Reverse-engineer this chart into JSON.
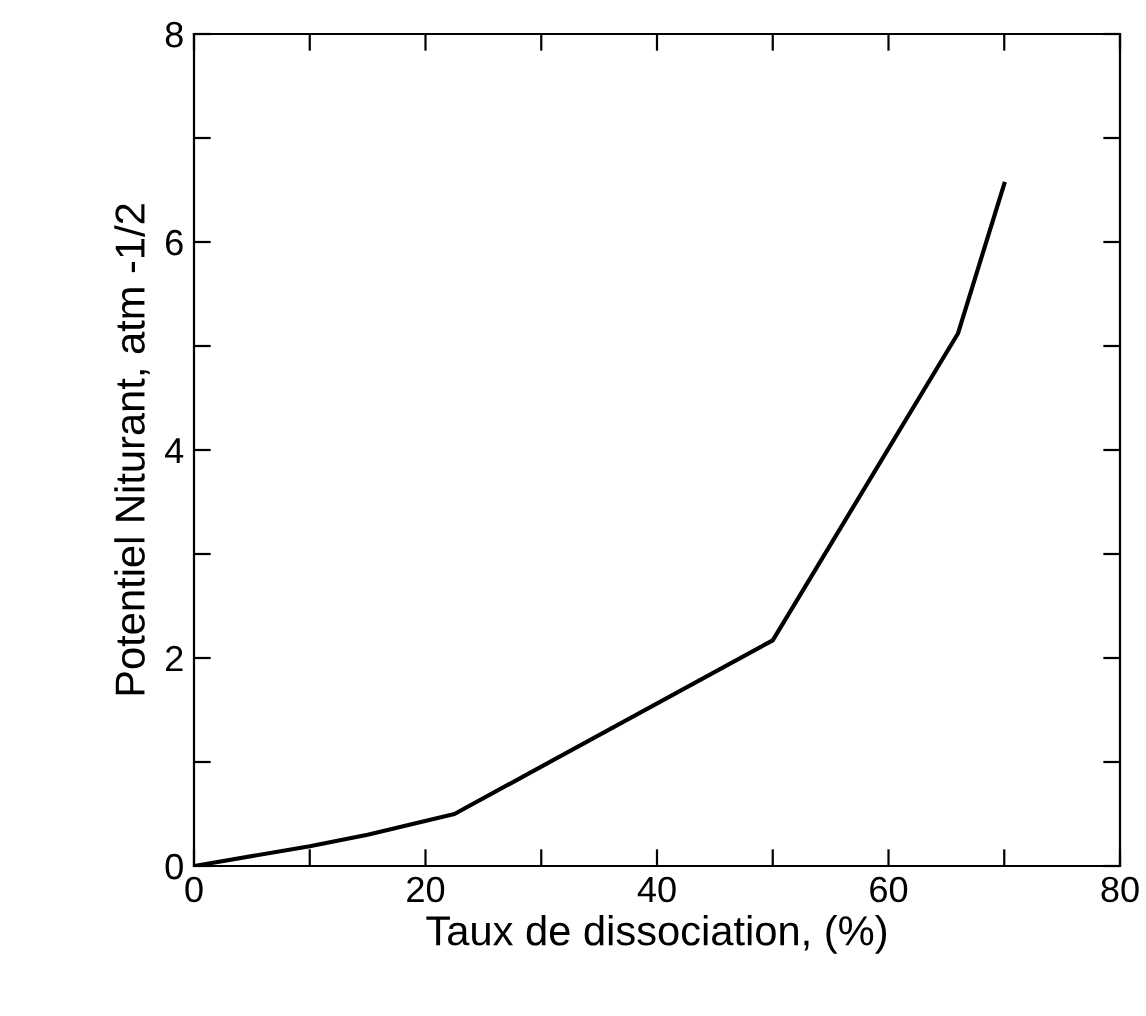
{
  "chart_data": {
    "type": "line",
    "xlabel": "Taux de dissociation, (%)",
    "ylabel": "Potentiel Niturant, atm -1/2",
    "x": [
      0,
      10,
      15,
      22.5,
      50,
      66,
      70
    ],
    "series": [
      {
        "color": "#000000",
        "values": [
          0,
          0.19,
          0.3,
          0.5,
          2.17,
          5.12,
          6.56
        ]
      }
    ],
    "xlim": [
      0,
      80
    ],
    "ylim": [
      0,
      8
    ],
    "xticks": [
      0,
      {
        "value": 10,
        "label": null
      },
      20,
      {
        "value": 30,
        "label": null
      },
      40,
      {
        "value": 50,
        "label": null
      },
      60,
      {
        "value": 70,
        "label": null
      },
      80
    ],
    "yticks": [
      0,
      {
        "value": 1,
        "label": null
      },
      2,
      {
        "value": 3,
        "label": null
      },
      4,
      {
        "value": 5,
        "label": null
      },
      6,
      {
        "value": 7,
        "label": null
      },
      8
    ],
    "grid": false,
    "legend": false,
    "marker": "none",
    "line_style": "solid"
  }
}
